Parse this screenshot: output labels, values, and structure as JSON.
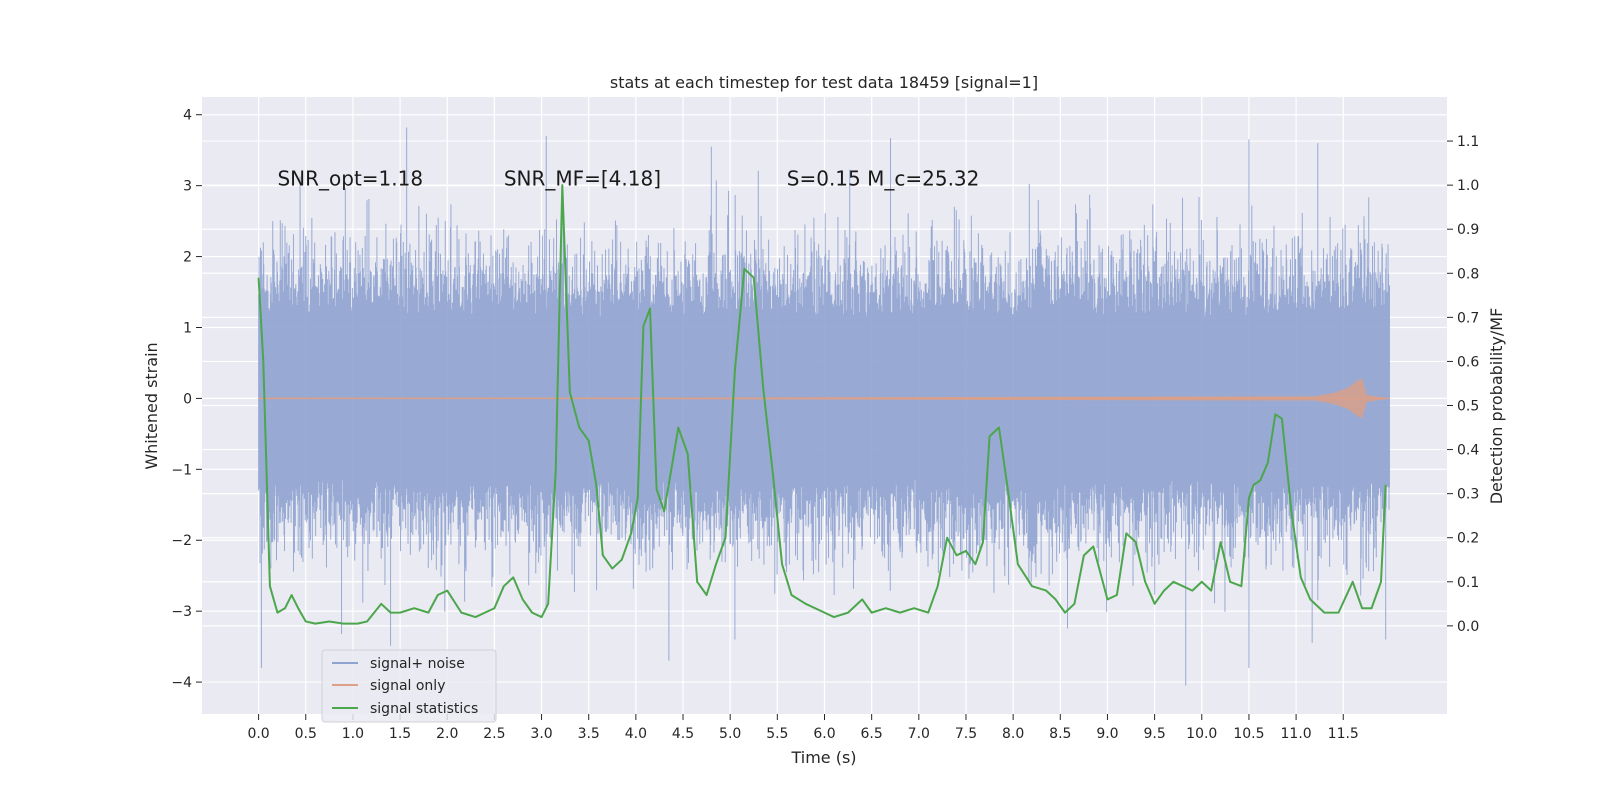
{
  "chart_data": {
    "type": "line",
    "title": "stats at each timestep for test data 18459 [signal=1]",
    "xlabel": "Time (s)",
    "ylabel": "Whitened strain",
    "y2label": "Detection probability/MF",
    "xlim": [
      -0.6,
      12.6
    ],
    "ylim": [
      -4.45,
      4.25
    ],
    "y2lim": [
      -0.2,
      1.2
    ],
    "xticks": [
      0.0,
      0.5,
      1.0,
      1.5,
      2.0,
      2.5,
      3.0,
      3.5,
      4.0,
      4.5,
      5.0,
      5.5,
      6.0,
      6.5,
      7.0,
      7.5,
      8.0,
      8.5,
      9.0,
      9.5,
      10.0,
      10.5,
      11.0,
      11.5
    ],
    "xtick_labels": [
      "0.0",
      "0.5",
      "1.0",
      "1.5",
      "2.0",
      "2.5",
      "3.0",
      "3.5",
      "4.0",
      "4.5",
      "5.0",
      "5.5",
      "6.0",
      "6.5",
      "7.0",
      "7.5",
      "8.0",
      "8.5",
      "9.0",
      "9.5",
      "10.0",
      "10.5",
      "11.0",
      "11.5"
    ],
    "yticks": [
      -4,
      -3,
      -2,
      -1,
      0,
      1,
      2,
      3,
      4
    ],
    "ytick_labels": [
      "−4",
      "−3",
      "−2",
      "−1",
      "0",
      "1",
      "2",
      "3",
      "4"
    ],
    "y2ticks": [
      0.0,
      0.1,
      0.2,
      0.3,
      0.4,
      0.5,
      0.6,
      0.7,
      0.8,
      0.9,
      1.0,
      1.1
    ],
    "y2tick_labels": [
      "0.0",
      "0.1",
      "0.2",
      "0.3",
      "0.4",
      "0.5",
      "0.6",
      "0.7",
      "0.8",
      "0.9",
      "1.0",
      "1.1"
    ],
    "grid": true,
    "legend_position": "lower-left",
    "annotations": [
      {
        "text": "SNR_opt=1.18",
        "x": 0.2,
        "y": 3.0
      },
      {
        "text": "SNR_MF=[4.18]",
        "x": 2.6,
        "y": 3.0
      },
      {
        "text": "S=0.15   M_c=25.32",
        "x": 5.6,
        "y": 3.0
      }
    ],
    "series": [
      {
        "name": "signal+ noise",
        "axis": "left",
        "color": "#8fa3d0",
        "x_range": [
          0.0,
          11.99
        ],
        "typical_amplitude": 1.2,
        "peaks": [
          {
            "x": 0.05,
            "y": 2.2
          },
          {
            "x": 0.15,
            "y": 2.5
          },
          {
            "x": 1.57,
            "y": 3.82
          },
          {
            "x": 3.05,
            "y": 3.7
          },
          {
            "x": 4.8,
            "y": 3.55
          },
          {
            "x": 6.7,
            "y": 3.67
          },
          {
            "x": 10.5,
            "y": 3.65
          },
          {
            "x": 11.23,
            "y": 3.6
          },
          {
            "x": 0.03,
            "y": -3.8
          },
          {
            "x": 4.35,
            "y": -3.7
          },
          {
            "x": 5.05,
            "y": -3.4
          },
          {
            "x": 9.83,
            "y": -4.05
          },
          {
            "x": 10.5,
            "y": -3.8
          },
          {
            "x": 11.95,
            "y": -3.4
          }
        ]
      },
      {
        "name": "signal only",
        "axis": "left",
        "color": "#dd9f85",
        "x": [
          0.0,
          11.2,
          11.4,
          11.55,
          11.65,
          11.7,
          11.75,
          11.99
        ],
        "envelope": [
          0.0,
          0.03,
          0.08,
          0.15,
          0.25,
          0.28,
          0.05,
          0.0
        ]
      },
      {
        "name": "signal statistics",
        "axis": "right",
        "color": "#4ca64c",
        "x": [
          0.0,
          0.05,
          0.12,
          0.2,
          0.28,
          0.35,
          0.42,
          0.5,
          0.6,
          0.75,
          0.9,
          1.05,
          1.15,
          1.3,
          1.4,
          1.5,
          1.65,
          1.8,
          1.9,
          2.0,
          2.15,
          2.3,
          2.4,
          2.5,
          2.6,
          2.7,
          2.8,
          2.9,
          3.0,
          3.07,
          3.15,
          3.22,
          3.3,
          3.4,
          3.5,
          3.58,
          3.65,
          3.75,
          3.85,
          3.95,
          4.02,
          4.08,
          4.15,
          4.22,
          4.3,
          4.38,
          4.45,
          4.55,
          4.65,
          4.75,
          4.85,
          4.95,
          5.05,
          5.15,
          5.25,
          5.35,
          5.45,
          5.55,
          5.65,
          5.8,
          6.0,
          6.1,
          6.25,
          6.4,
          6.5,
          6.65,
          6.8,
          6.95,
          7.1,
          7.2,
          7.3,
          7.4,
          7.5,
          7.6,
          7.68,
          7.75,
          7.85,
          7.95,
          8.05,
          8.2,
          8.35,
          8.45,
          8.55,
          8.65,
          8.75,
          8.85,
          9.0,
          9.1,
          9.2,
          9.3,
          9.4,
          9.5,
          9.6,
          9.7,
          9.8,
          9.9,
          10.0,
          10.1,
          10.2,
          10.3,
          10.42,
          10.5,
          10.55,
          10.62,
          10.7,
          10.78,
          10.85,
          10.95,
          11.05,
          11.15,
          11.3,
          11.45,
          11.6,
          11.7,
          11.8,
          11.9,
          11.95
        ],
        "values": [
          0.79,
          0.6,
          0.09,
          0.03,
          0.04,
          0.07,
          0.04,
          0.01,
          0.005,
          0.01,
          0.005,
          0.005,
          0.01,
          0.05,
          0.03,
          0.03,
          0.04,
          0.03,
          0.07,
          0.08,
          0.03,
          0.02,
          0.03,
          0.04,
          0.09,
          0.11,
          0.06,
          0.03,
          0.02,
          0.05,
          0.35,
          1.0,
          0.53,
          0.45,
          0.42,
          0.32,
          0.16,
          0.13,
          0.15,
          0.21,
          0.29,
          0.68,
          0.72,
          0.31,
          0.26,
          0.36,
          0.45,
          0.39,
          0.1,
          0.07,
          0.14,
          0.2,
          0.58,
          0.81,
          0.79,
          0.54,
          0.35,
          0.14,
          0.07,
          0.05,
          0.03,
          0.02,
          0.03,
          0.06,
          0.03,
          0.04,
          0.03,
          0.04,
          0.03,
          0.09,
          0.2,
          0.16,
          0.17,
          0.14,
          0.19,
          0.43,
          0.45,
          0.3,
          0.14,
          0.09,
          0.08,
          0.06,
          0.03,
          0.05,
          0.16,
          0.18,
          0.06,
          0.07,
          0.21,
          0.19,
          0.1,
          0.05,
          0.08,
          0.1,
          0.09,
          0.08,
          0.1,
          0.08,
          0.19,
          0.1,
          0.09,
          0.29,
          0.32,
          0.33,
          0.37,
          0.48,
          0.47,
          0.26,
          0.11,
          0.06,
          0.03,
          0.03,
          0.1,
          0.04,
          0.04,
          0.1,
          0.32
        ]
      }
    ]
  }
}
